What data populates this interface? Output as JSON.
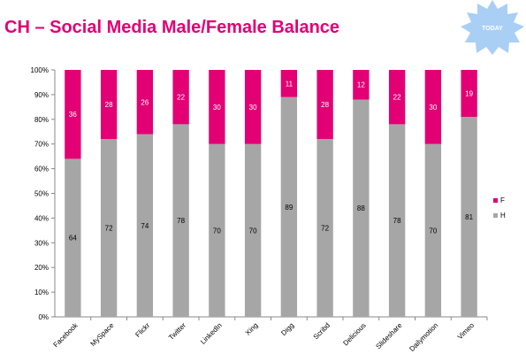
{
  "title": "CH – Social Media Male/Female Balance",
  "badge": {
    "label": "TODAY",
    "color": "#a9cff5"
  },
  "colors": {
    "F": "#e20074",
    "H": "#a6a6a6",
    "accent": "#e20074"
  },
  "chart_data": {
    "type": "bar",
    "stacked": true,
    "percent": true,
    "categories": [
      "Facebook",
      "MySpace",
      "Flickr",
      "Twitter",
      "LinkedIn",
      "Xing",
      "Digg",
      "Scribd",
      "Delicious",
      "Slideshare",
      "Dailymotion",
      "Vimeo"
    ],
    "series": [
      {
        "name": "H",
        "values": [
          64,
          72,
          74,
          78,
          70,
          70,
          89,
          72,
          88,
          78,
          70,
          81
        ]
      },
      {
        "name": "F",
        "values": [
          36,
          28,
          26,
          22,
          30,
          30,
          11,
          28,
          12,
          22,
          30,
          19
        ]
      }
    ],
    "y_ticks": [
      "0%",
      "10%",
      "20%",
      "30%",
      "40%",
      "50%",
      "60%",
      "70%",
      "80%",
      "90%",
      "100%"
    ],
    "ylim": [
      0,
      100
    ],
    "legend": [
      "F",
      "H"
    ],
    "legend_position": "right",
    "grid": false
  }
}
